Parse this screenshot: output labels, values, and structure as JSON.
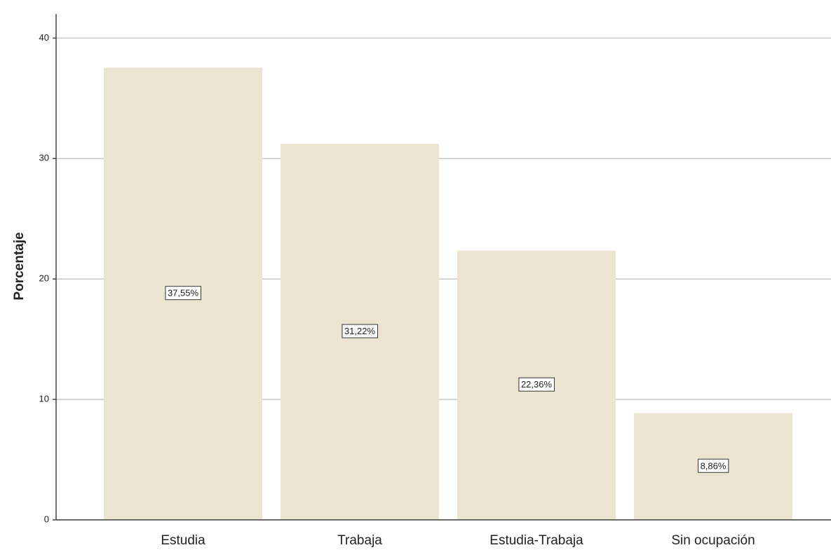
{
  "chart_data": {
    "type": "bar",
    "y_label": "Porcentaje",
    "categories": [
      "Estudia",
      "Trabaja",
      "Estudia-Trabaja",
      "Sin ocupación"
    ],
    "values": [
      37.55,
      31.22,
      22.36,
      8.86
    ],
    "value_labels": [
      "37,55%",
      "31,22%",
      "22,36%",
      "8,86%"
    ],
    "color": "#ebe4d0",
    "ylim": [
      0,
      42
    ],
    "yticks": [
      0,
      10,
      20,
      30,
      40
    ],
    "grid": true
  }
}
